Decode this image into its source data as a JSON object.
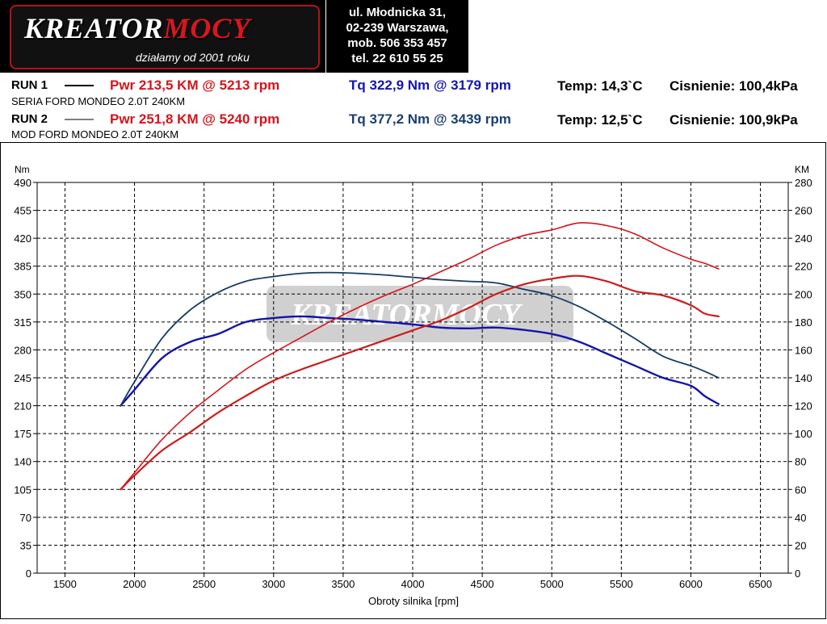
{
  "logo": {
    "brand_main": "KREATOR",
    "brand_accent": "MOCY",
    "tagline": "działamy od 2001 roku"
  },
  "address": {
    "line1": "ul. Młodnicka 31,",
    "line2": "02-239  Warszawa,",
    "line3": "mob.  506 353 457",
    "line4": "tel.  22 610 55 25"
  },
  "runs": [
    {
      "label": "RUN 1",
      "power": "Pwr  213,5 KM @ 5213 rpm",
      "torque": "Tq  322,9 Nm @ 3179 rpm",
      "temp": "Temp: 14,3`C",
      "pressure": "Cisnienie: 100,4kPa",
      "description": "SERIA FORD MONDEO 2.0T 240KM"
    },
    {
      "label": "RUN 2",
      "power": "Pwr  251,8 KM @ 5240 rpm",
      "torque": "Tq  377,2 Nm @ 3439 rpm",
      "temp": "Temp: 12,5`C",
      "pressure": "Cisnienie: 100,9kPa",
      "description": "MOD FORD MONDEO 2.0T 240KM"
    }
  ],
  "colors": {
    "power_stock": "#cc1c1c",
    "power_mod": "#d4141c",
    "torque_stock": "#1414a8",
    "torque_mod": "#173c66",
    "grid": "#000000"
  },
  "chart_data": {
    "type": "line",
    "xlabel": "Obroty silnika [rpm]",
    "ylabel_left": "Nm",
    "ylabel_right": "KM",
    "xlim": [
      1300,
      6700
    ],
    "ylim_left": [
      0,
      490
    ],
    "ylim_right": [
      0,
      280
    ],
    "xticks": [
      1500,
      2000,
      2500,
      3000,
      3500,
      4000,
      4500,
      5000,
      5500,
      6000,
      6500
    ],
    "yticks_left": [
      0,
      35,
      70,
      105,
      140,
      175,
      210,
      245,
      280,
      315,
      350,
      385,
      420,
      455,
      490
    ],
    "yticks_right": [
      0,
      20,
      40,
      60,
      80,
      100,
      120,
      140,
      160,
      180,
      200,
      220,
      240,
      260,
      280
    ],
    "grid": true,
    "series": [
      {
        "name": "RUN 1",
        "quantity": "torque",
        "axis": "left",
        "x": [
          1900,
          2000,
          2200,
          2400,
          2600,
          2800,
          3000,
          3200,
          3400,
          3600,
          3800,
          4000,
          4200,
          4400,
          4600,
          4800,
          5000,
          5200,
          5400,
          5600,
          5800,
          6000,
          6100,
          6200
        ],
        "y": [
          210,
          230,
          270,
          290,
          300,
          315,
          320,
          322,
          320,
          318,
          315,
          312,
          308,
          307,
          308,
          305,
          300,
          290,
          275,
          260,
          245,
          235,
          222,
          212
        ]
      },
      {
        "name": "RUN 2",
        "quantity": "torque",
        "axis": "left",
        "x": [
          1900,
          2000,
          2200,
          2400,
          2600,
          2800,
          3000,
          3200,
          3400,
          3600,
          3800,
          4000,
          4200,
          4400,
          4600,
          4800,
          5000,
          5200,
          5400,
          5600,
          5800,
          6000,
          6100,
          6200
        ],
        "y": [
          210,
          240,
          295,
          330,
          352,
          366,
          372,
          376,
          377,
          376,
          374,
          371,
          368,
          366,
          364,
          356,
          348,
          334,
          315,
          294,
          272,
          260,
          253,
          245
        ]
      },
      {
        "name": "RUN 1",
        "quantity": "power",
        "axis": "right",
        "x": [
          1900,
          2000,
          2200,
          2400,
          2600,
          2800,
          3000,
          3200,
          3400,
          3600,
          3800,
          4000,
          4200,
          4400,
          4600,
          4800,
          5000,
          5200,
          5400,
          5600,
          5800,
          6000,
          6100,
          6200
        ],
        "y": [
          60,
          70,
          88,
          101,
          115,
          127,
          138,
          146,
          153,
          160,
          167,
          174,
          181,
          190,
          200,
          207,
          211,
          213,
          209,
          202,
          199,
          192,
          186,
          184
        ]
      },
      {
        "name": "RUN 2",
        "quantity": "power",
        "axis": "right",
        "x": [
          1900,
          2000,
          2200,
          2400,
          2600,
          2800,
          3000,
          3200,
          3400,
          3600,
          3800,
          4000,
          4200,
          4400,
          4600,
          4800,
          5000,
          5200,
          5400,
          5600,
          5800,
          6000,
          6100,
          6200
        ],
        "y": [
          60,
          72,
          96,
          115,
          131,
          146,
          158,
          169,
          180,
          190,
          199,
          207,
          216,
          225,
          235,
          242,
          246,
          251,
          249,
          243,
          233,
          225,
          222,
          218
        ]
      }
    ]
  }
}
